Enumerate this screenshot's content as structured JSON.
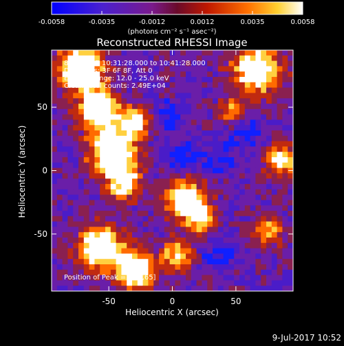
{
  "colorbar": {
    "ticks": [
      "-0.0058",
      "-0.0035",
      "-0.0012",
      "0.0012",
      "0.0035",
      "0.0058"
    ],
    "unit_label": "(photons cm⁻² s⁻¹ asec⁻²)"
  },
  "chart_data": {
    "type": "heatmap",
    "title": "Reconstructed RHESSI Image",
    "xlabel": "Heliocentric X (arcsec)",
    "ylabel": "Heliocentric Y (arcsec)",
    "xlim": [
      -95,
      95
    ],
    "ylim": [
      -95,
      95
    ],
    "xticks": [
      -50,
      0,
      50
    ],
    "yticks": [
      50,
      0,
      -50
    ],
    "zrange": [
      -0.0058,
      0.0058
    ],
    "colormap": [
      "#1020ff",
      "#4a1cc8",
      "#6a1ea8",
      "#8a2050",
      "#c02a10",
      "#ff6a00",
      "#ffd040",
      "#ffffff"
    ],
    "info_lines": [
      "8-Jul-2017 10:31:28.000 to 10:41:28.000",
      "Detectors: 3F 6F 8F, Att 0",
      "Energy Range: 12.0 - 25.0 keV",
      "Clean    Total counts: 2.49E+04"
    ],
    "peak_label": "Position of Peak = [-98,65]",
    "peak_position": [
      -98,
      65
    ]
  },
  "footer": {
    "date": "9-Jul-2017 10:52"
  }
}
